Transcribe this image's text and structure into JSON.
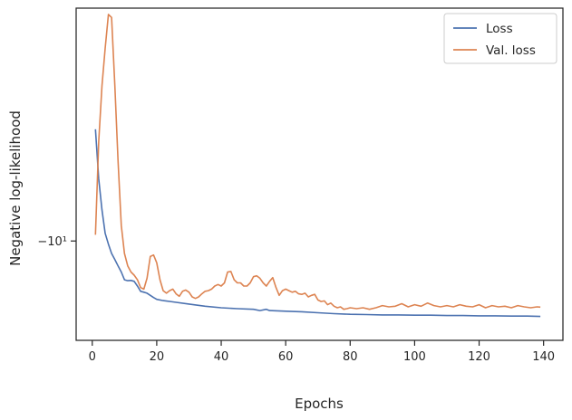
{
  "chart_data": {
    "type": "line",
    "xlabel": "Epochs",
    "ylabel": "Negative log-likelihood",
    "xlim": [
      -5,
      146
    ],
    "ylim": [
      -13.2,
      -2.5
    ],
    "yscale": "symlog",
    "x_ticks": [
      0,
      20,
      40,
      60,
      80,
      100,
      120,
      140
    ],
    "y_ticks": [
      {
        "value": -10,
        "label": "−10¹"
      }
    ],
    "legend_position": "top-right",
    "grid": false,
    "series": [
      {
        "name": "Loss",
        "color": "#4c72b0",
        "x": [
          1,
          2,
          3,
          4,
          5,
          6,
          7,
          8,
          9,
          10,
          11,
          12,
          13,
          14,
          15,
          16,
          17,
          18,
          19,
          20,
          22,
          25,
          30,
          35,
          40,
          45,
          50,
          52,
          54,
          55,
          60,
          65,
          70,
          75,
          80,
          85,
          90,
          95,
          100,
          105,
          110,
          115,
          120,
          125,
          130,
          135,
          139
        ],
        "y": [
          -6.4,
          -8.0,
          -9.0,
          -9.75,
          -10.1,
          -10.4,
          -10.6,
          -10.8,
          -11.0,
          -11.25,
          -11.28,
          -11.27,
          -11.3,
          -11.45,
          -11.62,
          -11.65,
          -11.68,
          -11.75,
          -11.82,
          -11.88,
          -11.92,
          -11.96,
          -12.03,
          -12.1,
          -12.15,
          -12.18,
          -12.2,
          -12.24,
          -12.2,
          -12.24,
          -12.26,
          -12.28,
          -12.31,
          -12.34,
          -12.36,
          -12.37,
          -12.38,
          -12.38,
          -12.39,
          -12.39,
          -12.4,
          -12.4,
          -12.41,
          -12.41,
          -12.42,
          -12.42,
          -12.43
        ]
      },
      {
        "name": "Val. loss",
        "color": "#dd8452",
        "x": [
          1,
          2,
          3,
          4,
          5,
          6,
          7,
          8,
          9,
          10,
          11,
          12,
          13,
          14,
          15,
          16,
          17,
          18,
          19,
          20,
          21,
          22,
          23,
          24,
          25,
          26,
          27,
          28,
          29,
          30,
          31,
          32,
          33,
          34,
          35,
          36,
          37,
          38,
          39,
          40,
          41,
          42,
          43,
          44,
          45,
          46,
          47,
          48,
          49,
          50,
          51,
          52,
          53,
          54,
          55,
          56,
          57,
          58,
          59,
          60,
          61,
          62,
          63,
          64,
          65,
          66,
          67,
          68,
          69,
          70,
          71,
          72,
          73,
          74,
          75,
          76,
          77,
          78,
          79,
          80,
          82,
          84,
          86,
          88,
          90,
          92,
          94,
          96,
          98,
          100,
          102,
          104,
          106,
          108,
          110,
          112,
          114,
          116,
          118,
          120,
          122,
          124,
          126,
          128,
          130,
          132,
          134,
          136,
          138,
          139
        ],
        "y": [
          -9.8,
          -6.8,
          -5.0,
          -3.8,
          -2.7,
          -2.8,
          -5.0,
          -7.4,
          -9.5,
          -10.4,
          -10.8,
          -11.0,
          -11.1,
          -11.25,
          -11.5,
          -11.55,
          -11.2,
          -10.5,
          -10.45,
          -10.7,
          -11.25,
          -11.6,
          -11.68,
          -11.6,
          -11.55,
          -11.7,
          -11.78,
          -11.62,
          -11.58,
          -11.65,
          -11.8,
          -11.85,
          -11.8,
          -11.7,
          -11.62,
          -11.6,
          -11.55,
          -11.45,
          -11.4,
          -11.45,
          -11.35,
          -11.0,
          -10.98,
          -11.25,
          -11.35,
          -11.35,
          -11.45,
          -11.45,
          -11.35,
          -11.15,
          -11.12,
          -11.2,
          -11.35,
          -11.45,
          -11.3,
          -11.18,
          -11.5,
          -11.75,
          -11.6,
          -11.55,
          -11.6,
          -11.65,
          -11.62,
          -11.7,
          -11.72,
          -11.68,
          -11.8,
          -11.75,
          -11.72,
          -11.9,
          -11.95,
          -11.93,
          -12.05,
          -12.0,
          -12.1,
          -12.15,
          -12.12,
          -12.2,
          -12.18,
          -12.15,
          -12.18,
          -12.15,
          -12.2,
          -12.15,
          -12.08,
          -12.12,
          -12.1,
          -12.02,
          -12.12,
          -12.05,
          -12.1,
          -12.0,
          -12.08,
          -12.12,
          -12.08,
          -12.12,
          -12.05,
          -12.1,
          -12.12,
          -12.05,
          -12.15,
          -12.08,
          -12.12,
          -12.1,
          -12.15,
          -12.08,
          -12.12,
          -12.15,
          -12.12,
          -12.13
        ]
      }
    ]
  }
}
